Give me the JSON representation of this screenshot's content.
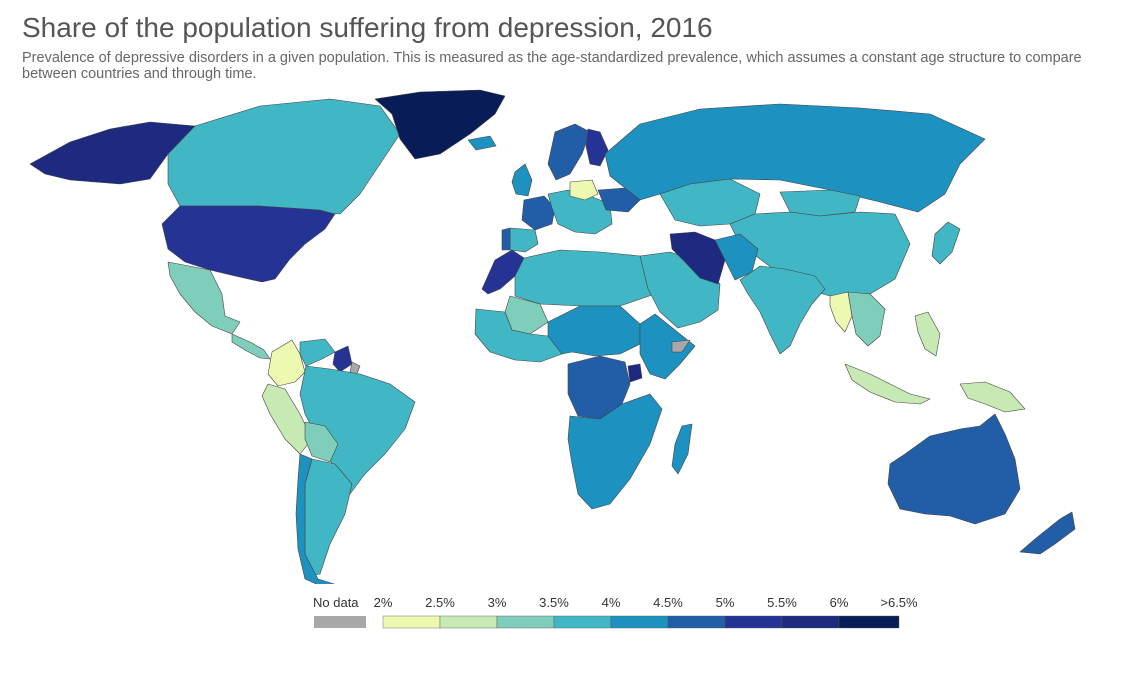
{
  "title": "Share of the population suffering from depression, 2016",
  "subtitle": "Prevalence of depressive disorders in a given population. This is measured as the age-standardized prevalence, which assumes a constant age structure to compare between countries and through time.",
  "colors": {
    "no_data": "#a8a8a8",
    "border": "#444444",
    "bins": [
      "#edf8b1",
      "#c7e9b4",
      "#7fcdbb",
      "#41b6c4",
      "#1d91c0",
      "#225ea8",
      "#253494",
      "#1d2a80",
      "#081d58"
    ]
  },
  "legend": {
    "no_data_label": "No data",
    "tick_labels": [
      "2%",
      "2.5%",
      "3%",
      "3.5%",
      "4%",
      "4.5%",
      "5%",
      "5.5%",
      "6%",
      ">6.5%"
    ]
  },
  "regions": [
    {
      "name": "Alaska",
      "bin": 7
    },
    {
      "name": "Canada",
      "bin": 3
    },
    {
      "name": "Greenland",
      "bin": 8
    },
    {
      "name": "United States",
      "bin": 6
    },
    {
      "name": "Mexico",
      "bin": 2
    },
    {
      "name": "Central America",
      "bin": 2
    },
    {
      "name": "Colombia",
      "bin": 0
    },
    {
      "name": "Venezuela",
      "bin": 3
    },
    {
      "name": "Guyana and Suriname",
      "bin": 6
    },
    {
      "name": "French Guiana",
      "bin": -1
    },
    {
      "name": "Peru",
      "bin": 1
    },
    {
      "name": "Brazil",
      "bin": 3
    },
    {
      "name": "Bolivia",
      "bin": 2
    },
    {
      "name": "Argentina",
      "bin": 3
    },
    {
      "name": "Chile",
      "bin": 4
    },
    {
      "name": "Iceland",
      "bin": 4
    },
    {
      "name": "Scandinavia",
      "bin": 5
    },
    {
      "name": "Finland",
      "bin": 6
    },
    {
      "name": "United Kingdom",
      "bin": 4
    },
    {
      "name": "France",
      "bin": 5
    },
    {
      "name": "Iberia",
      "bin": 3
    },
    {
      "name": "Portugal",
      "bin": 5
    },
    {
      "name": "Central Europe",
      "bin": 3
    },
    {
      "name": "Poland",
      "bin": 0
    },
    {
      "name": "Ukraine",
      "bin": 5
    },
    {
      "name": "Russia",
      "bin": 4
    },
    {
      "name": "Kazakhstan",
      "bin": 3
    },
    {
      "name": "Mongolia",
      "bin": 3
    },
    {
      "name": "China",
      "bin": 3
    },
    {
      "name": "Japan",
      "bin": 3
    },
    {
      "name": "Morocco",
      "bin": 6
    },
    {
      "name": "North Africa",
      "bin": 3
    },
    {
      "name": "Mali",
      "bin": 2
    },
    {
      "name": "West Africa",
      "bin": 3
    },
    {
      "name": "Central Africa",
      "bin": 4
    },
    {
      "name": "Horn of Africa",
      "bin": 4
    },
    {
      "name": "Somalia",
      "bin": -1
    },
    {
      "name": "DR Congo",
      "bin": 5
    },
    {
      "name": "Uganda",
      "bin": 7
    },
    {
      "name": "Southern Africa",
      "bin": 4
    },
    {
      "name": "Madagascar",
      "bin": 4
    },
    {
      "name": "Arabian Peninsula",
      "bin": 3
    },
    {
      "name": "Iran",
      "bin": 7
    },
    {
      "name": "Afghanistan and Pakistan",
      "bin": 4
    },
    {
      "name": "India",
      "bin": 3
    },
    {
      "name": "Myanmar",
      "bin": 0
    },
    {
      "name": "Southeast Asia",
      "bin": 2
    },
    {
      "name": "Indonesia",
      "bin": 1
    },
    {
      "name": "Philippines",
      "bin": 1
    },
    {
      "name": "Papua New Guinea",
      "bin": 1
    },
    {
      "name": "Australia",
      "bin": 5
    },
    {
      "name": "New Zealand",
      "bin": 5
    }
  ]
}
